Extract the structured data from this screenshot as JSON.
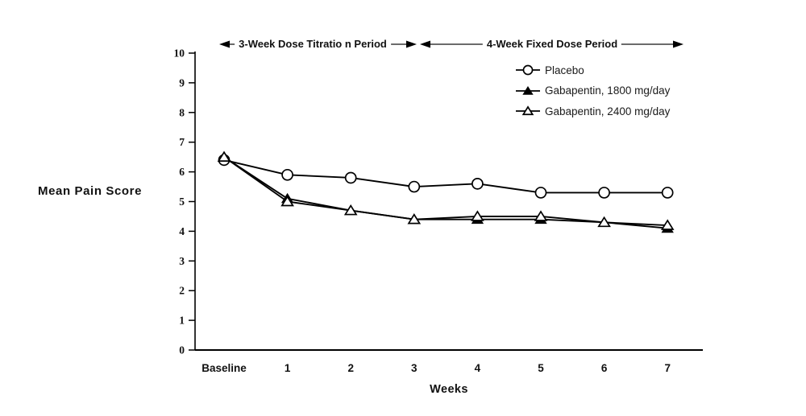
{
  "figure": {
    "y_axis_title": "Mean Pain Score",
    "x_axis_title": "Weeks",
    "annotations": {
      "titration": "3-Week Dose Titratio n Period",
      "fixed": "4-Week Fixed Dose Period"
    },
    "colors": {
      "line": "#000000",
      "background": "#ffffff"
    }
  },
  "legend": {
    "items": [
      {
        "label": "Placebo",
        "marker": "open-circle"
      },
      {
        "label": "Gabapentin, 1800 mg/day",
        "marker": "filled-triangle"
      },
      {
        "label": "Gabapentin, 2400 mg/day",
        "marker": "open-triangle"
      }
    ]
  },
  "chart_data": {
    "type": "line",
    "categories": [
      "Baseline",
      "1",
      "2",
      "3",
      "4",
      "5",
      "6",
      "7"
    ],
    "series": [
      {
        "name": "Placebo",
        "marker": "open-circle",
        "values": [
          6.4,
          5.9,
          5.8,
          5.5,
          5.6,
          5.3,
          5.3,
          5.3
        ]
      },
      {
        "name": "Gabapentin, 1800 mg/day",
        "marker": "filled-triangle",
        "values": [
          6.5,
          5.1,
          4.7,
          4.4,
          4.4,
          4.4,
          4.3,
          4.1
        ]
      },
      {
        "name": "Gabapentin, 2400 mg/day",
        "marker": "open-triangle",
        "values": [
          6.5,
          5.0,
          4.7,
          4.4,
          4.5,
          4.5,
          4.3,
          4.2
        ]
      }
    ],
    "title": "",
    "xlabel": "Weeks",
    "ylabel": "Mean Pain Score",
    "ylim": [
      0,
      10
    ],
    "y_ticks": [
      0,
      1,
      2,
      3,
      4,
      5,
      6,
      7,
      8,
      9,
      10
    ],
    "grid": false,
    "legend_position": "top-right",
    "x_period_annotations": [
      "3-Week Dose Titratio n Period",
      "4-Week Fixed Dose Period"
    ]
  }
}
